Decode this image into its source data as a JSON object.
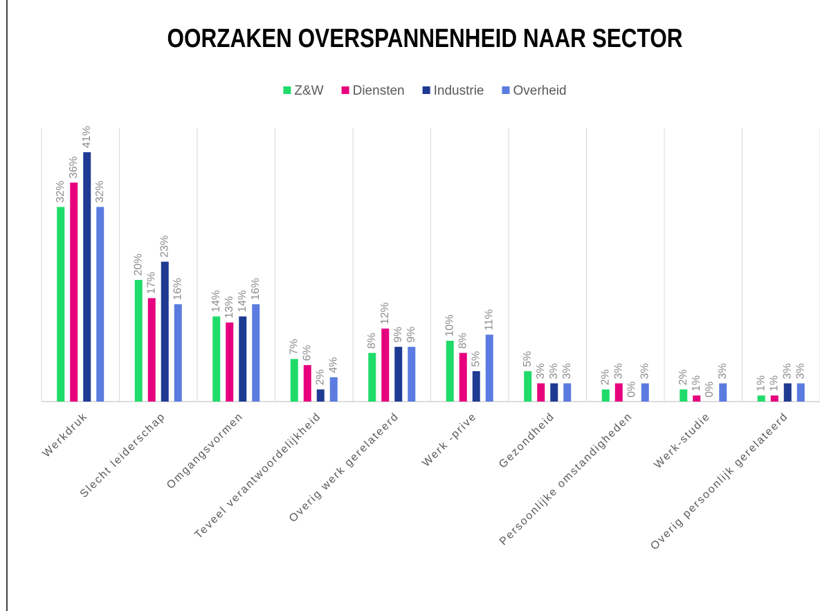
{
  "chart_data": {
    "type": "bar",
    "title": "OORZAKEN OVERSPANNENHEID NAAR SECTOR",
    "categories": [
      "Werkdruk",
      "Slecht leiderschap",
      "Omgangsvormen",
      "Teveel verantwoordelijkheid",
      "Overig werk gerelateerd",
      "Werk -prive",
      "Gezondheid",
      "Persoonlijke omstandigheden",
      "Werk-studie",
      "Overig persoonlijk gerelateerd"
    ],
    "series": [
      {
        "name": "Z&W",
        "color": "#1fdc6a",
        "values": [
          32,
          20,
          14,
          7,
          8,
          10,
          5,
          2,
          2,
          1
        ],
        "value_labels": [
          "32%",
          "20%",
          "14%",
          "7%",
          "8%",
          "10%",
          "5%",
          "2%",
          "2%",
          "1%"
        ]
      },
      {
        "name": "Diensten",
        "color": "#e6007e",
        "values": [
          36,
          17,
          13,
          6,
          12,
          8,
          3,
          3,
          1,
          1
        ],
        "value_labels": [
          "36%",
          "17%",
          "13%",
          "6%",
          "12%",
          "8%",
          "3%",
          "3%",
          "1%",
          "1%"
        ]
      },
      {
        "name": "Industrie",
        "color": "#1f3a93",
        "values": [
          41,
          23,
          14,
          2,
          9,
          5,
          3,
          0,
          0,
          3
        ],
        "value_labels": [
          "41%",
          "23%",
          "14%",
          "2%",
          "9%",
          "5%",
          "3%",
          "0%",
          "0%",
          "3%"
        ]
      },
      {
        "name": "Overheid",
        "color": "#5b7be0",
        "values": [
          32,
          16,
          16,
          4,
          9,
          11,
          3,
          3,
          3,
          3
        ],
        "value_labels": [
          "32%",
          "16%",
          "16%",
          "4%",
          "9%",
          "11%",
          "3%",
          "3%",
          "3%",
          "3%"
        ]
      }
    ],
    "ylim": [
      0,
      45
    ],
    "legend": "top"
  }
}
